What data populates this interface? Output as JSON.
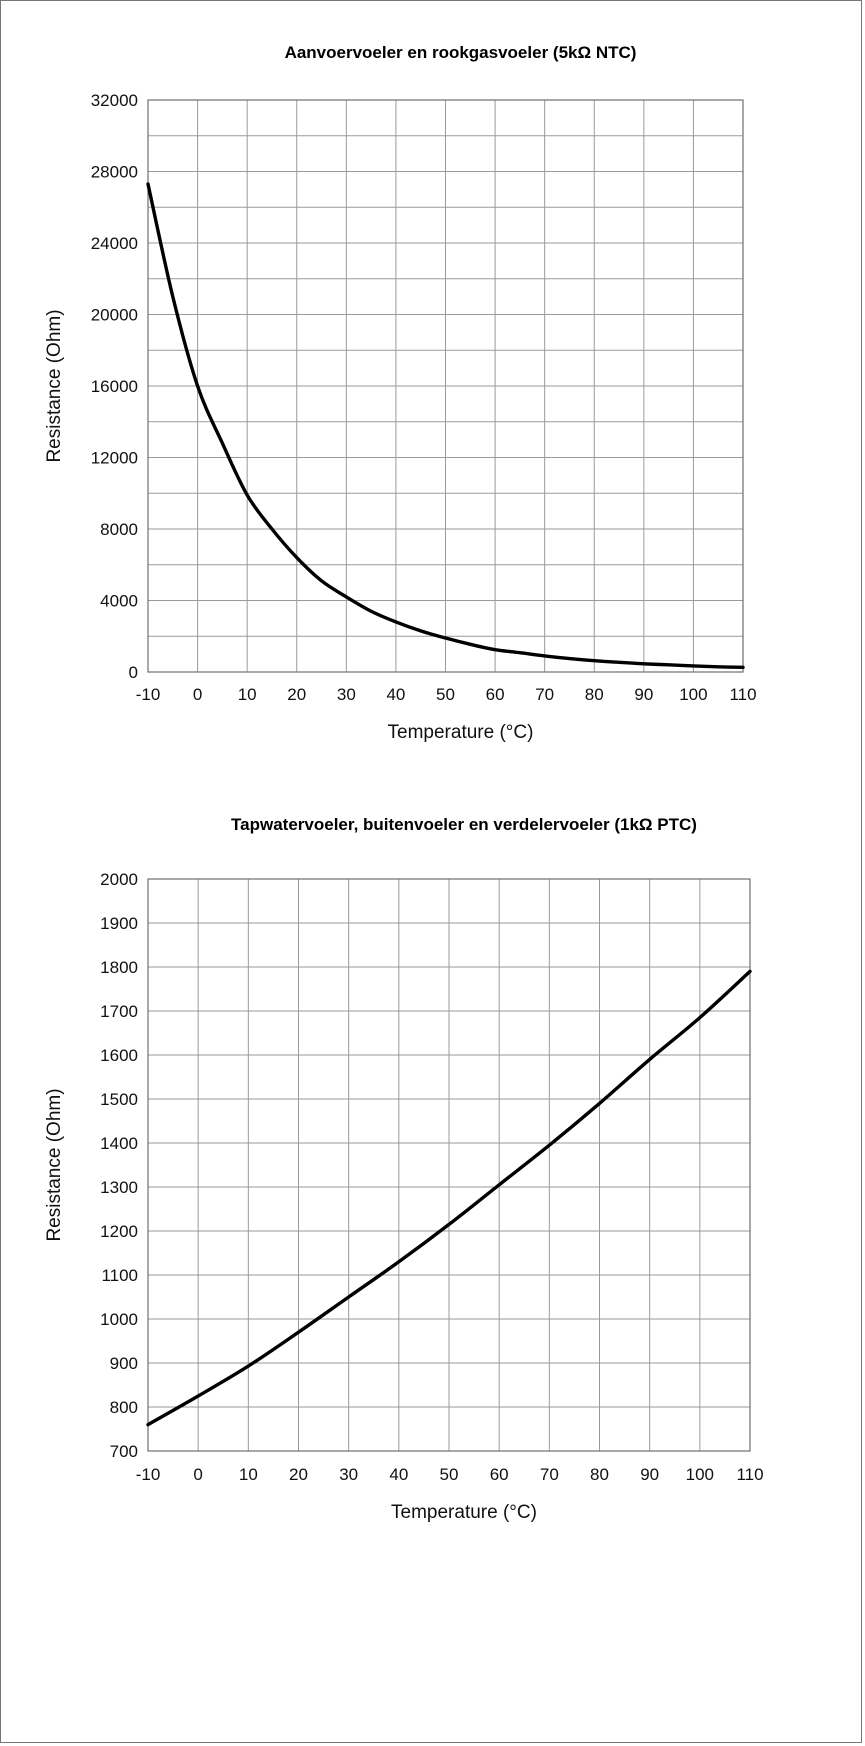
{
  "chart_data": [
    {
      "type": "line",
      "title": "Aanvoervoeler en rookgasvoeler (5kΩ NTC)",
      "xlabel": "Temperature (°C)",
      "ylabel": "Resistance (Ohm)",
      "xlim": [
        -10,
        110
      ],
      "ylim": [
        0,
        32000
      ],
      "x_ticks": [
        -10,
        0,
        10,
        20,
        30,
        40,
        50,
        60,
        70,
        80,
        90,
        100,
        110
      ],
      "y_ticks": [
        0,
        4000,
        8000,
        12000,
        16000,
        20000,
        24000,
        28000,
        32000
      ],
      "grid": true,
      "series": [
        {
          "x": [
            -10,
            -5,
            0,
            5,
            10,
            15,
            20,
            25,
            30,
            35,
            40,
            45,
            50,
            55,
            60,
            65,
            70,
            75,
            80,
            85,
            90,
            95,
            100,
            105,
            110
          ],
          "values": [
            27300,
            21000,
            16000,
            12800,
            9900,
            8000,
            6400,
            5100,
            4200,
            3400,
            2800,
            2300,
            1900,
            1550,
            1250,
            1080,
            900,
            750,
            630,
            540,
            460,
            400,
            340,
            290,
            260
          ]
        }
      ]
    },
    {
      "type": "line",
      "title": "Tapwatervoeler, buitenvoeler en verdelervoeler (1kΩ PTC)",
      "xlabel": "Temperature (°C)",
      "ylabel": "Resistance (Ohm)",
      "xlim": [
        -10,
        110
      ],
      "ylim": [
        700,
        2000
      ],
      "x_ticks": [
        -10,
        0,
        10,
        20,
        30,
        40,
        50,
        60,
        70,
        80,
        90,
        100,
        110
      ],
      "y_ticks": [
        700,
        800,
        900,
        1000,
        1100,
        1200,
        1300,
        1400,
        1500,
        1600,
        1700,
        1800,
        1900,
        2000
      ],
      "grid": true,
      "series": [
        {
          "x": [
            -10,
            0,
            10,
            20,
            30,
            40,
            50,
            60,
            70,
            80,
            90,
            100,
            110
          ],
          "values": [
            760,
            825,
            893,
            970,
            1050,
            1130,
            1215,
            1305,
            1395,
            1490,
            1590,
            1685,
            1790
          ]
        }
      ]
    }
  ]
}
